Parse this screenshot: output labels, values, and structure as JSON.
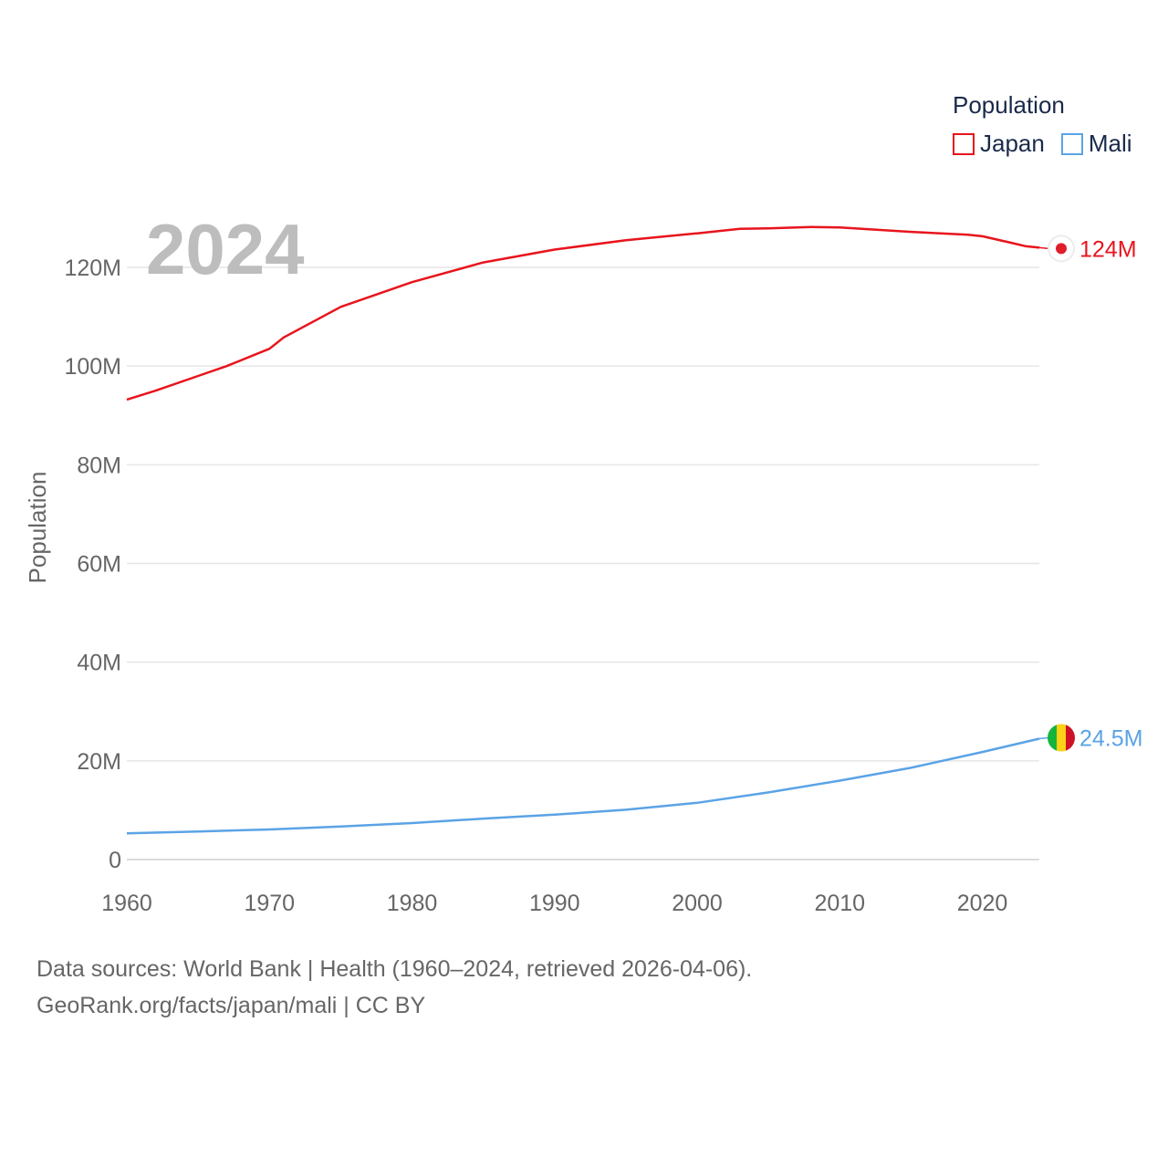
{
  "legend": {
    "title": "Population",
    "items": [
      {
        "label": "Japan",
        "color": "#e8141c"
      },
      {
        "label": "Mali",
        "color": "#5ba3e6"
      }
    ]
  },
  "footer": {
    "line1": "Data sources: World Bank | Health (1960–2024, retrieved 2026-04-06).",
    "line2": "GeoRank.org/facts/japan/mali | CC BY"
  },
  "chart_data": {
    "type": "line",
    "title": "Population",
    "year_label": "2024",
    "xlabel": "",
    "ylabel": "Population",
    "xlim": [
      1960,
      2024
    ],
    "ylim": [
      0,
      130000000
    ],
    "x_ticks": [
      1960,
      1970,
      1980,
      1990,
      2000,
      2010,
      2020
    ],
    "y_ticks": [
      {
        "value": 0,
        "label": "0"
      },
      {
        "value": 20000000,
        "label": "20M"
      },
      {
        "value": 40000000,
        "label": "40M"
      },
      {
        "value": 60000000,
        "label": "60M"
      },
      {
        "value": 80000000,
        "label": "80M"
      },
      {
        "value": 100000000,
        "label": "100M"
      },
      {
        "value": 120000000,
        "label": "120M"
      }
    ],
    "grid": true,
    "series": [
      {
        "name": "Japan",
        "color": "#e8141c",
        "end_label": "124M",
        "points": [
          [
            1960,
            93200000
          ],
          [
            1962,
            95000000
          ],
          [
            1965,
            98000000
          ],
          [
            1967,
            100000000
          ],
          [
            1970,
            103500000
          ],
          [
            1971,
            105800000
          ],
          [
            1975,
            112000000
          ],
          [
            1980,
            117000000
          ],
          [
            1985,
            121000000
          ],
          [
            1990,
            123600000
          ],
          [
            1995,
            125500000
          ],
          [
            2000,
            126900000
          ],
          [
            2003,
            127800000
          ],
          [
            2005,
            127900000
          ],
          [
            2008,
            128200000
          ],
          [
            2010,
            128100000
          ],
          [
            2015,
            127200000
          ],
          [
            2019,
            126600000
          ],
          [
            2020,
            126300000
          ],
          [
            2022,
            125000000
          ],
          [
            2023,
            124300000
          ],
          [
            2024,
            124000000
          ]
        ]
      },
      {
        "name": "Mali",
        "color": "#5ba3e6",
        "end_label": "24.5M",
        "points": [
          [
            1960,
            5300000
          ],
          [
            1965,
            5700000
          ],
          [
            1970,
            6100000
          ],
          [
            1975,
            6700000
          ],
          [
            1980,
            7400000
          ],
          [
            1985,
            8300000
          ],
          [
            1990,
            9100000
          ],
          [
            1995,
            10100000
          ],
          [
            2000,
            11500000
          ],
          [
            2005,
            13600000
          ],
          [
            2010,
            16000000
          ],
          [
            2015,
            18600000
          ],
          [
            2020,
            21800000
          ],
          [
            2024,
            24500000
          ]
        ]
      }
    ]
  }
}
